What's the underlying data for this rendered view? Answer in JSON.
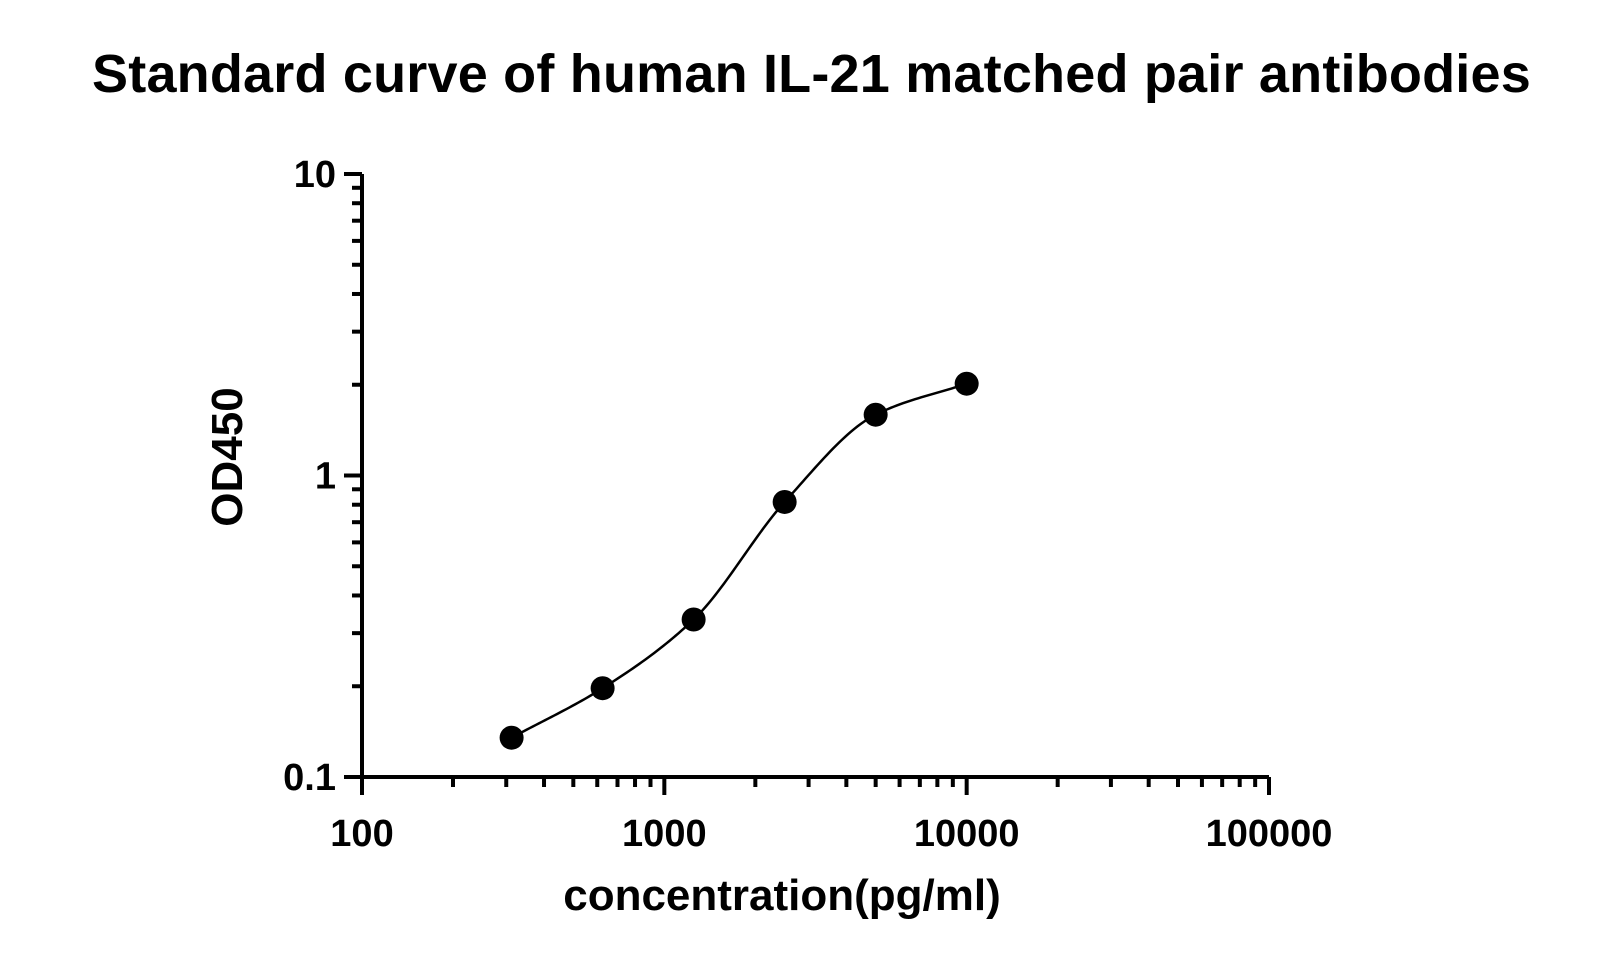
{
  "chart_data": {
    "type": "scatter",
    "title": "Standard curve of human IL-21 matched pair antibodies",
    "xlabel": "concentration(pg/ml)",
    "ylabel": "OD450",
    "x_scale": "log",
    "y_scale": "log",
    "xlim": [
      100,
      100000
    ],
    "ylim": [
      0.1,
      10
    ],
    "x_tick_labels": [
      "100",
      "1000",
      "10000",
      "100000"
    ],
    "y_tick_labels": [
      "0.1",
      "1",
      "10"
    ],
    "grid": false,
    "legend": "none",
    "series": [
      {
        "marker": "filled-circle",
        "fit": "four-parameter-logistic",
        "x": [
          312.5,
          625,
          1250,
          2500,
          5000,
          10000
        ],
        "y": [
          0.135,
          0.197,
          0.333,
          0.817,
          1.591,
          2.016
        ]
      }
    ],
    "colors": {
      "marker": "#000000",
      "curve": "#000000",
      "axes": "#000000"
    }
  }
}
